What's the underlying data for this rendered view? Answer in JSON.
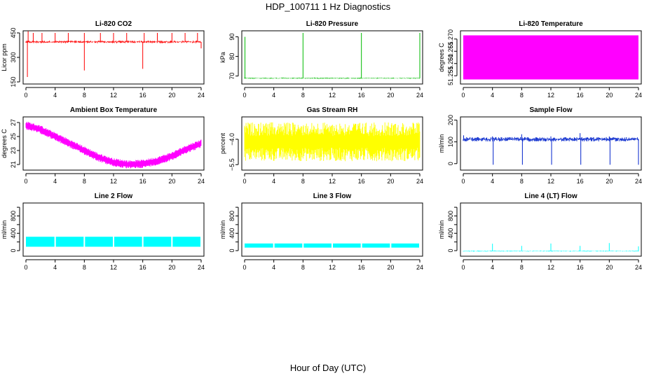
{
  "figure": {
    "title": "HDP_100711  1 Hz Diagnostics",
    "xlabel": "Hour of Day (UTC)",
    "colors": {
      "axis": "#000000",
      "background": "#ffffff"
    }
  },
  "chart_data": [
    {
      "type": "line",
      "title": "Li-820 CO2",
      "xlabel": "",
      "ylabel": "Licor ppm",
      "color": "#ff0000",
      "xlim": [
        0,
        24
      ],
      "xticks": [
        0,
        4,
        8,
        12,
        16,
        20,
        24
      ],
      "ylim": [
        150,
        450
      ],
      "yticks": [
        150,
        300,
        450
      ],
      "ytick_labels": [
        "150",
        "300",
        "450"
      ],
      "series": [
        {
          "name": "CO2",
          "style": "band-with-spikes",
          "baseline": 395,
          "noise": 8,
          "spikes": [
            {
              "x": 0.2,
              "y": 180
            },
            {
              "x": 0.3,
              "y": 460
            },
            {
              "x": 1.0,
              "y": 450
            },
            {
              "x": 2.2,
              "y": 450
            },
            {
              "x": 4.0,
              "y": 450
            },
            {
              "x": 5.8,
              "y": 450
            },
            {
              "x": 8.0,
              "y": 220
            },
            {
              "x": 8.0,
              "y": 450
            },
            {
              "x": 10.2,
              "y": 450
            },
            {
              "x": 12.0,
              "y": 450
            },
            {
              "x": 13.8,
              "y": 450
            },
            {
              "x": 16.0,
              "y": 230
            },
            {
              "x": 16.2,
              "y": 450
            },
            {
              "x": 18.0,
              "y": 450
            },
            {
              "x": 20.0,
              "y": 450
            },
            {
              "x": 21.8,
              "y": 450
            },
            {
              "x": 23.5,
              "y": 450
            },
            {
              "x": 24.0,
              "y": 355
            }
          ]
        }
      ]
    },
    {
      "type": "line",
      "title": "Li-820 Pressure",
      "xlabel": "",
      "ylabel": "kPa",
      "color": "#00bb00",
      "xlim": [
        0,
        24
      ],
      "xticks": [
        0,
        4,
        8,
        12,
        16,
        20,
        24
      ],
      "ylim": [
        67,
        92
      ],
      "yticks": [
        70,
        80,
        90
      ],
      "ytick_labels": [
        "70",
        "80",
        "90"
      ],
      "series": [
        {
          "name": "Pressure",
          "style": "band-with-spikes",
          "baseline": 68.9,
          "noise": 0.3,
          "spikes": [
            {
              "x": 0.05,
              "y": 90
            },
            {
              "x": 8.0,
              "y": 92
            },
            {
              "x": 16.0,
              "y": 92
            },
            {
              "x": 24.0,
              "y": 92
            }
          ]
        }
      ]
    },
    {
      "type": "area",
      "title": "Li-820 Temperature",
      "xlabel": "",
      "ylabel": "degrees C",
      "color": "#ff00ff",
      "xlim": [
        0,
        24
      ],
      "xticks": [
        0,
        4,
        8,
        12,
        16,
        20,
        24
      ],
      "ylim": [
        51.2525,
        51.2725
      ],
      "yticks": [
        51.255,
        51.26,
        51.265,
        51.27
      ],
      "ytick_labels": [
        "51.255",
        "51.260",
        "51.265",
        "51.270"
      ],
      "series": [
        {
          "name": "Temperature",
          "style": "filled-block",
          "ymin": 51.2535,
          "ymax": 51.2715
        }
      ]
    },
    {
      "type": "line",
      "title": "Ambient Box Temperature",
      "xlabel": "",
      "ylabel": "degrees C",
      "color": "#ff00ff",
      "xlim": [
        0,
        24
      ],
      "xticks": [
        0,
        4,
        8,
        12,
        16,
        20,
        24
      ],
      "ylim": [
        20.5,
        27.5
      ],
      "yticks": [
        21,
        23,
        25,
        27
      ],
      "ytick_labels": [
        "21",
        "23",
        "25",
        "27"
      ],
      "series": [
        {
          "name": "Box temp",
          "style": "noisy-curve",
          "noise": 0.6,
          "x": [
            0,
            2,
            4,
            6,
            8,
            10,
            12,
            14,
            16,
            18,
            20,
            22,
            24
          ],
          "y": [
            26.6,
            26.0,
            25.0,
            24.0,
            23.0,
            22.0,
            21.3,
            21.0,
            21.1,
            21.5,
            22.2,
            23.2,
            24.0
          ]
        }
      ]
    },
    {
      "type": "line",
      "title": "Gas Stream RH",
      "xlabel": "",
      "ylabel": "percent",
      "color": "#ffff00",
      "xlim": [
        0,
        24
      ],
      "xticks": [
        0,
        4,
        8,
        12,
        16,
        20,
        24
      ],
      "ylim": [
        -5.7,
        -2.8
      ],
      "yticks": [
        -5.5,
        -4.0
      ],
      "ytick_labels": [
        "−5.5",
        "−4.0"
      ],
      "series": [
        {
          "name": "RH",
          "style": "band",
          "ymin": -5.3,
          "ymax": -3.0
        }
      ]
    },
    {
      "type": "line",
      "title": "Sample Flow",
      "xlabel": "",
      "ylabel": "ml/min",
      "color": "#0022cc",
      "xlim": [
        0,
        24
      ],
      "xticks": [
        0,
        4,
        8,
        12,
        16,
        20,
        24
      ],
      "ylim": [
        -20,
        205
      ],
      "yticks": [
        0,
        100,
        200
      ],
      "ytick_labels": [
        "0",
        "100",
        "200"
      ],
      "series": [
        {
          "name": "Sample flow",
          "style": "band-with-spikes",
          "baseline": 112,
          "noise": 10,
          "spikes": [
            {
              "x": 0.05,
              "y": 130
            },
            {
              "x": 4.0,
              "y": 125
            },
            {
              "x": 4.1,
              "y": -5
            },
            {
              "x": 8.0,
              "y": 135
            },
            {
              "x": 8.1,
              "y": -5
            },
            {
              "x": 12.0,
              "y": 125
            },
            {
              "x": 12.1,
              "y": -5
            },
            {
              "x": 16.0,
              "y": 140
            },
            {
              "x": 16.1,
              "y": -5
            },
            {
              "x": 20.0,
              "y": 125
            },
            {
              "x": 20.1,
              "y": -5
            },
            {
              "x": 24.0,
              "y": -5
            }
          ]
        }
      ]
    },
    {
      "type": "line",
      "title": "Line 2 Flow",
      "xlabel": "",
      "ylabel": "ml/min",
      "color": "#00ffff",
      "xlim": [
        0,
        24
      ],
      "xticks": [
        0,
        4,
        8,
        12,
        16,
        20,
        24
      ],
      "ylim": [
        -80,
        1050
      ],
      "yticks": [
        0,
        200,
        400,
        600,
        800,
        1000
      ],
      "ytick_labels": [
        "0",
        "",
        "400",
        "",
        "800",
        ""
      ],
      "series": [
        {
          "name": "Line 2",
          "style": "segmented-band",
          "ymin": 90,
          "ymax": 320,
          "gaps": [
            4,
            8,
            12,
            16,
            20
          ]
        }
      ]
    },
    {
      "type": "line",
      "title": "Line 3 Flow",
      "xlabel": "",
      "ylabel": "ml/min",
      "color": "#00ffff",
      "xlim": [
        0,
        24
      ],
      "xticks": [
        0,
        4,
        8,
        12,
        16,
        20,
        24
      ],
      "ylim": [
        -80,
        1050
      ],
      "yticks": [
        0,
        200,
        400,
        600,
        800,
        1000
      ],
      "ytick_labels": [
        "0",
        "",
        "400",
        "",
        "800",
        ""
      ],
      "series": [
        {
          "name": "Line 3",
          "style": "segmented-band",
          "ymin": 70,
          "ymax": 165,
          "gaps": [
            4,
            8,
            12,
            16,
            20
          ]
        }
      ]
    },
    {
      "type": "line",
      "title": "Line 4 (LT) Flow",
      "xlabel": "",
      "ylabel": "ml/min",
      "color": "#00ffff",
      "xlim": [
        0,
        24
      ],
      "xticks": [
        0,
        4,
        8,
        12,
        16,
        20,
        24
      ],
      "ylim": [
        -80,
        1050
      ],
      "yticks": [
        0,
        200,
        400,
        600,
        800,
        1000
      ],
      "ytick_labels": [
        "0",
        "",
        "400",
        "",
        "800",
        ""
      ],
      "series": [
        {
          "name": "Line 4",
          "style": "band-with-spikes",
          "baseline": -10,
          "noise": 12,
          "spikes": [
            {
              "x": 4.0,
              "y": 160
            },
            {
              "x": 8.0,
              "y": 110
            },
            {
              "x": 12.0,
              "y": 165
            },
            {
              "x": 16.0,
              "y": 110
            },
            {
              "x": 20.0,
              "y": 175
            },
            {
              "x": 24.0,
              "y": 100
            }
          ]
        }
      ]
    }
  ]
}
